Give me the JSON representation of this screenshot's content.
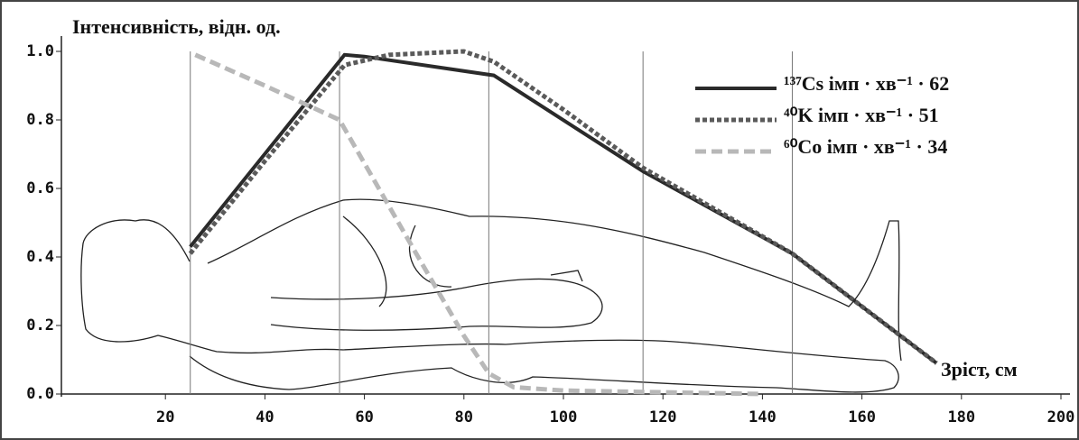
{
  "chart_data": {
    "type": "line",
    "y_label": "Інтенсивність, відн. од.",
    "x_label": "Зріст, см",
    "xlim": [
      0,
      200
    ],
    "xticks": [
      20,
      40,
      60,
      80,
      100,
      120,
      140,
      160,
      180,
      200
    ],
    "ylim": [
      0,
      1
    ],
    "yticks": [
      {
        "value": 0,
        "label": "0.0"
      },
      0.2,
      0.4,
      0.6,
      0.8,
      {
        "value": 1,
        "label": "1.0"
      }
    ],
    "reference_lines": [
      25,
      55,
      85,
      116,
      146
    ],
    "legend": "upper right",
    "series": [
      {
        "name": "¹³⁷Cs імп · хв⁻¹ · 62",
        "color": "#2a2a2a",
        "style": "solid",
        "x": [
          25,
          56,
          60,
          86,
          116,
          146,
          175
        ],
        "values": [
          0.43,
          0.99,
          0.985,
          0.93,
          0.65,
          0.41,
          0.09
        ]
      },
      {
        "name": "⁴⁰K імп · хв⁻¹ · 51",
        "color": "#5a5a5a",
        "style": "dotted",
        "x": [
          25,
          40,
          56,
          65,
          80,
          86,
          100,
          116,
          146,
          175
        ],
        "values": [
          0.41,
          0.68,
          0.96,
          0.99,
          1.0,
          0.97,
          0.83,
          0.66,
          0.41,
          0.09
        ]
      },
      {
        "name": "⁶⁰Co імп · хв⁻¹ · 34",
        "color": "#b8b8b8",
        "style": "dashed",
        "x": [
          26,
          40,
          55,
          70,
          80,
          85,
          90,
          100,
          120,
          140
        ],
        "values": [
          0.99,
          0.9,
          0.8,
          0.42,
          0.17,
          0.06,
          0.02,
          0.01,
          0.005,
          0.0
        ]
      }
    ]
  }
}
